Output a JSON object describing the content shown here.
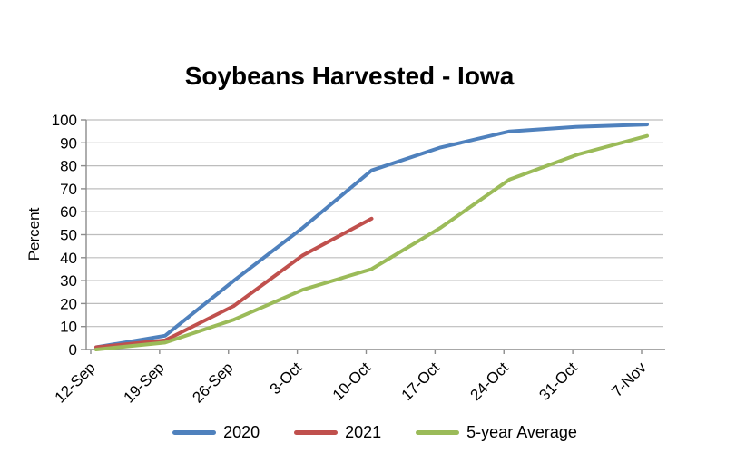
{
  "chart_data": {
    "type": "line",
    "title": "Soybeans Harvested - Iowa",
    "ylabel": "Percent",
    "xlabel": "",
    "ylim": [
      0,
      100
    ],
    "ytick_step": 10,
    "grid": "horizontal",
    "legend_position": "bottom",
    "categories": [
      "12-Sep",
      "19-Sep",
      "26-Sep",
      "3-Oct",
      "10-Oct",
      "17-Oct",
      "24-Oct",
      "31-Oct",
      "7-Nov"
    ],
    "series": [
      {
        "name": "2020",
        "color": "#4f81bd",
        "values": [
          1,
          6,
          30,
          53,
          78,
          88,
          95,
          97,
          98
        ]
      },
      {
        "name": "2021",
        "color": "#c0504d",
        "values": [
          1,
          4,
          19,
          41,
          57,
          null,
          null,
          null,
          null
        ]
      },
      {
        "name": "5-year Average",
        "color": "#9bbb59",
        "values": [
          0,
          3,
          13,
          26,
          35,
          53,
          74,
          85,
          93
        ]
      }
    ],
    "axis_color": "#8c8c8c",
    "gridline_color": "#bdbdbd",
    "text_color": "#000000"
  }
}
